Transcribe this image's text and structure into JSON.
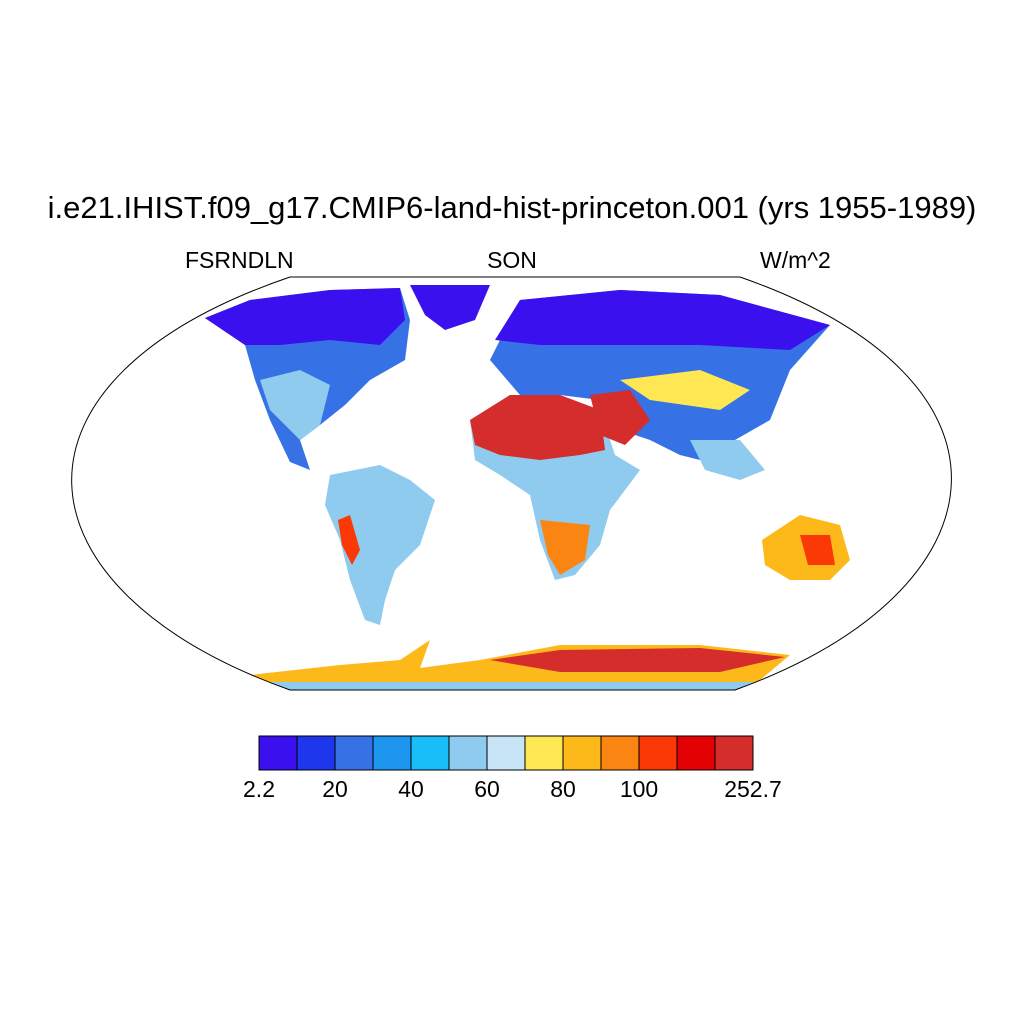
{
  "title": "i.e21.IHIST.f09_g17.CMIP6-land-hist-princeton.001 (yrs 1955-1989)",
  "subtitle_left": "FSRNDLN",
  "subtitle_center": "SON",
  "subtitle_right": "W/m^2",
  "colorbar": {
    "colors": [
      "#3b10ef",
      "#1e36ec",
      "#3672e6",
      "#1e96ef",
      "#19bdf7",
      "#8fcbee",
      "#c8e5f7",
      "#fee753",
      "#fdb91a",
      "#fb8512",
      "#fb3907",
      "#e40104",
      "#d52c2c"
    ],
    "labels": [
      "2.2",
      "20",
      "40",
      "60",
      "80",
      "100",
      "252.7"
    ]
  }
}
